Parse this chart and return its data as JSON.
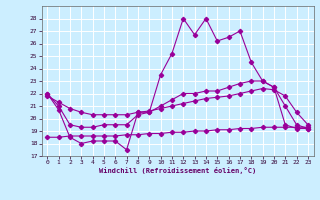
{
  "xlabel": "Windchill (Refroidissement éolien,°C)",
  "background_color": "#cceeff",
  "grid_color": "#ffffff",
  "line_color": "#990099",
  "xlim": [
    -0.5,
    23.5
  ],
  "ylim": [
    17,
    29
  ],
  "yticks": [
    17,
    18,
    19,
    20,
    21,
    22,
    23,
    24,
    25,
    26,
    27,
    28
  ],
  "xticks": [
    0,
    1,
    2,
    3,
    4,
    5,
    6,
    7,
    8,
    9,
    10,
    11,
    12,
    13,
    14,
    15,
    16,
    17,
    18,
    19,
    20,
    21,
    22,
    23
  ],
  "series1_x": [
    0,
    1,
    2,
    3,
    4,
    5,
    6,
    7,
    8,
    9,
    10,
    11,
    12,
    13,
    14,
    15,
    16,
    17,
    18,
    19,
    20,
    21,
    22,
    23
  ],
  "series1_y": [
    22,
    20.7,
    18.5,
    18.0,
    18.2,
    18.2,
    18.2,
    17.5,
    20.5,
    20.5,
    23.5,
    25.2,
    28.0,
    26.7,
    28.0,
    26.2,
    26.5,
    27.0,
    24.5,
    23.0,
    22.5,
    19.5,
    19.2,
    19.2
  ],
  "series2_x": [
    0,
    1,
    2,
    3,
    4,
    5,
    6,
    7,
    8,
    9,
    10,
    11,
    12,
    13,
    14,
    15,
    16,
    17,
    18,
    19,
    20,
    21,
    22,
    23
  ],
  "series2_y": [
    22.0,
    21.0,
    19.5,
    19.3,
    19.3,
    19.5,
    19.5,
    19.5,
    20.3,
    20.5,
    21.0,
    21.5,
    22.0,
    22.0,
    22.2,
    22.2,
    22.5,
    22.8,
    23.0,
    23.0,
    22.5,
    21.0,
    19.5,
    19.2
  ],
  "series3_x": [
    0,
    1,
    2,
    3,
    4,
    5,
    6,
    7,
    8,
    9,
    10,
    11,
    12,
    13,
    14,
    15,
    16,
    17,
    18,
    19,
    20,
    21,
    22,
    23
  ],
  "series3_y": [
    21.8,
    21.3,
    20.8,
    20.5,
    20.3,
    20.3,
    20.3,
    20.3,
    20.5,
    20.6,
    20.8,
    21.0,
    21.2,
    21.4,
    21.6,
    21.7,
    21.8,
    22.0,
    22.2,
    22.4,
    22.3,
    21.8,
    20.5,
    19.5
  ],
  "series4_x": [
    0,
    1,
    2,
    3,
    4,
    5,
    6,
    7,
    8,
    9,
    10,
    11,
    12,
    13,
    14,
    15,
    16,
    17,
    18,
    19,
    20,
    21,
    22,
    23
  ],
  "series4_y": [
    18.5,
    18.5,
    18.6,
    18.6,
    18.6,
    18.6,
    18.6,
    18.7,
    18.7,
    18.8,
    18.8,
    18.9,
    18.9,
    19.0,
    19.0,
    19.1,
    19.1,
    19.2,
    19.2,
    19.3,
    19.3,
    19.3,
    19.3,
    19.3
  ]
}
